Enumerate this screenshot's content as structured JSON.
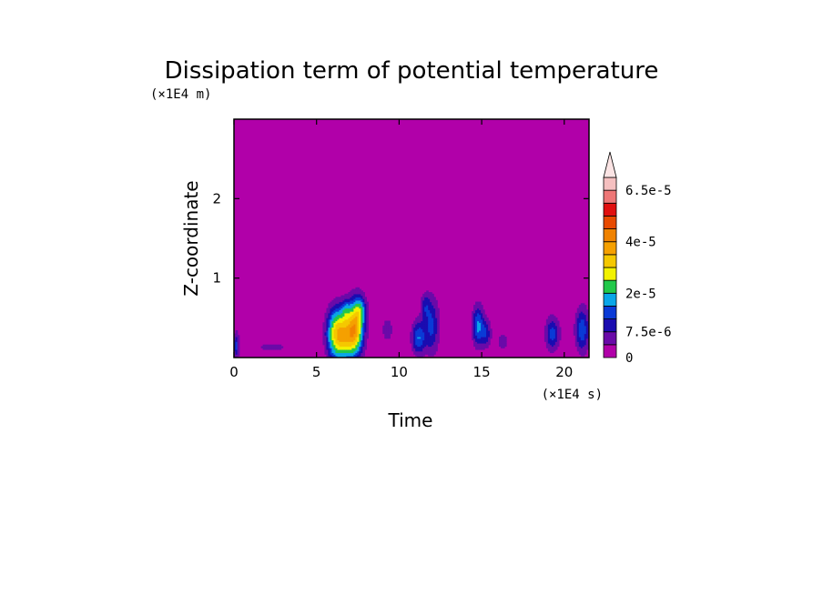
{
  "chart_data": {
    "type": "heatmap",
    "title": "Dissipation term of potential temperature",
    "xlabel": "Time",
    "ylabel": "Z-coordinate",
    "x_unit_label": "(×1E4 s)",
    "y_unit_label": "(×1E4 m)",
    "xlim": [
      0,
      21.5
    ],
    "ylim": [
      0,
      3.0
    ],
    "x_ticks": [
      {
        "value": 0,
        "label": "0"
      },
      {
        "value": 5,
        "label": "5"
      },
      {
        "value": 10,
        "label": "10"
      },
      {
        "value": 15,
        "label": "15"
      },
      {
        "value": 20,
        "label": "20"
      }
    ],
    "y_ticks": [
      {
        "value": 1,
        "label": "1"
      },
      {
        "value": 2,
        "label": "2"
      }
    ],
    "background_color": "#b100a9",
    "colorbar": {
      "levels": [
        0,
        3.75e-06,
        7.5e-06,
        1.125e-05,
        1.5e-05,
        2e-05,
        2.5e-05,
        3e-05,
        3.5e-05,
        4e-05,
        4.5e-05,
        5e-05,
        5.5e-05,
        6.5e-05,
        7.5e-05
      ],
      "colors": [
        "#b100a9",
        "#6a0aa8",
        "#1a0cb0",
        "#0a3ad6",
        "#0aa6e8",
        "#22c94a",
        "#f2f200",
        "#f5c800",
        "#f5a000",
        "#f08200",
        "#e84a00",
        "#e01010",
        "#ee7777",
        "#f5c0c0"
      ],
      "extend_color": "#fbe4e4",
      "tick_labels": [
        {
          "value": 0,
          "label": "0"
        },
        {
          "value": 7.5e-06,
          "label": "7.5e-6"
        },
        {
          "value": 2e-05,
          "label": "2e-5"
        },
        {
          "value": 4e-05,
          "label": "4e-5"
        },
        {
          "value": 6.5e-05,
          "label": "6.5e-5"
        }
      ]
    },
    "features": [
      {
        "x": 0.15,
        "z": 0.15,
        "sx": 0.12,
        "sz": 0.12,
        "peak": 1.2e-05
      },
      {
        "x": 2.3,
        "z": 0.13,
        "sx": 0.9,
        "sz": 0.05,
        "peak": 5e-06
      },
      {
        "x": 6.2,
        "z": 0.3,
        "sx": 0.4,
        "sz": 0.22,
        "peak": 2.6e-05
      },
      {
        "x": 7.0,
        "z": 0.28,
        "sx": 0.5,
        "sz": 0.2,
        "peak": 3e-05
      },
      {
        "x": 7.4,
        "z": 0.45,
        "sx": 0.3,
        "sz": 0.22,
        "peak": 2e-05
      },
      {
        "x": 7.7,
        "z": 0.6,
        "sx": 0.25,
        "sz": 0.12,
        "peak": 1.2e-05
      },
      {
        "x": 6.8,
        "z": 0.6,
        "sx": 0.2,
        "sz": 0.1,
        "peak": 9e-06
      },
      {
        "x": 9.3,
        "z": 0.35,
        "sx": 0.25,
        "sz": 0.12,
        "peak": 6e-06
      },
      {
        "x": 11.2,
        "z": 0.25,
        "sx": 0.3,
        "sz": 0.15,
        "peak": 1.5e-05
      },
      {
        "x": 12.0,
        "z": 0.4,
        "sx": 0.3,
        "sz": 0.25,
        "peak": 1.2e-05
      },
      {
        "x": 11.6,
        "z": 0.65,
        "sx": 0.2,
        "sz": 0.12,
        "peak": 8e-06
      },
      {
        "x": 14.8,
        "z": 0.4,
        "sx": 0.25,
        "sz": 0.18,
        "peak": 1.6e-05
      },
      {
        "x": 15.3,
        "z": 0.3,
        "sx": 0.2,
        "sz": 0.12,
        "peak": 1e-05
      },
      {
        "x": 16.3,
        "z": 0.2,
        "sx": 0.25,
        "sz": 0.08,
        "peak": 6e-06
      },
      {
        "x": 19.3,
        "z": 0.3,
        "sx": 0.3,
        "sz": 0.15,
        "peak": 1.3e-05
      },
      {
        "x": 21.1,
        "z": 0.35,
        "sx": 0.3,
        "sz": 0.2,
        "peak": 1.4e-05
      }
    ]
  }
}
